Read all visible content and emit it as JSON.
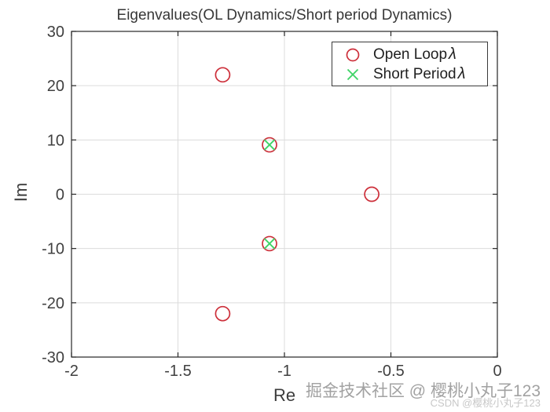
{
  "chart_data": {
    "type": "scatter",
    "title": "Eigenvalues(OL Dynamics/Short period Dynamics)",
    "xlabel": "Re",
    "ylabel": "Im",
    "xlim": [
      -2,
      0
    ],
    "ylim": [
      -30,
      30
    ],
    "xticks": [
      -2,
      -1.5,
      -1,
      -0.5,
      0
    ],
    "yticks": [
      -30,
      -20,
      -10,
      0,
      10,
      20,
      30
    ],
    "grid": true,
    "legend_position": "top-right",
    "series": [
      {
        "name": "Open Loop λ",
        "marker": "circle",
        "color": "#cd2f3a",
        "points": [
          [
            -1.29,
            22.0
          ],
          [
            -1.07,
            9.1
          ],
          [
            -0.59,
            0.0
          ],
          [
            -1.07,
            -9.1
          ],
          [
            -1.29,
            -22.0
          ]
        ]
      },
      {
        "name": "Short Period λ",
        "marker": "x",
        "color": "#3fd467",
        "points": [
          [
            -1.07,
            9.1
          ],
          [
            -1.07,
            -9.1
          ]
        ]
      }
    ],
    "colors": {
      "axis": "#262626",
      "grid": "#dcdcdc",
      "tick_label": "#404040"
    }
  },
  "legend": {
    "items": [
      {
        "text": "Open Loop",
        "symbol": "λ"
      },
      {
        "text": "Short Period",
        "symbol": "λ"
      }
    ]
  },
  "watermarks": {
    "juejin": "掘金技术社区 @ 樱桃小丸子123",
    "csdn": "CSDN @樱桃小丸子123"
  }
}
